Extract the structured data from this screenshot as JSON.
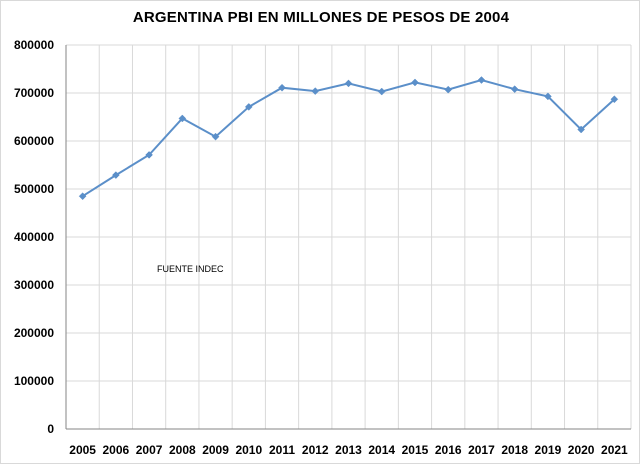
{
  "chart_data": {
    "type": "line",
    "title": "ARGENTINA PBI EN MILLONES DE PESOS DE 2004",
    "xlabel": "",
    "ylabel": "",
    "categories": [
      "2005",
      "2006",
      "2007",
      "2008",
      "2009",
      "2010",
      "2011",
      "2012",
      "2013",
      "2014",
      "2015",
      "2016",
      "2017",
      "2018",
      "2019",
      "2020",
      "2021"
    ],
    "series": [
      {
        "values": [
          485000,
          529000,
          571000,
          647000,
          609000,
          671000,
          711000,
          704000,
          720000,
          703000,
          722000,
          707000,
          727000,
          708000,
          693000,
          624000,
          687000
        ]
      }
    ],
    "ylim": [
      0,
      800000
    ],
    "yticks": [
      "0",
      "100000",
      "200000",
      "300000",
      "400000",
      "500000",
      "600000",
      "700000",
      "800000"
    ],
    "grid": true,
    "legend": "none",
    "annotation": "FUENTE INDEC",
    "colors": {
      "series": "#5b8fc9",
      "grid": "#d9d9d9",
      "axis": "#868686"
    },
    "marker": "diamond"
  }
}
